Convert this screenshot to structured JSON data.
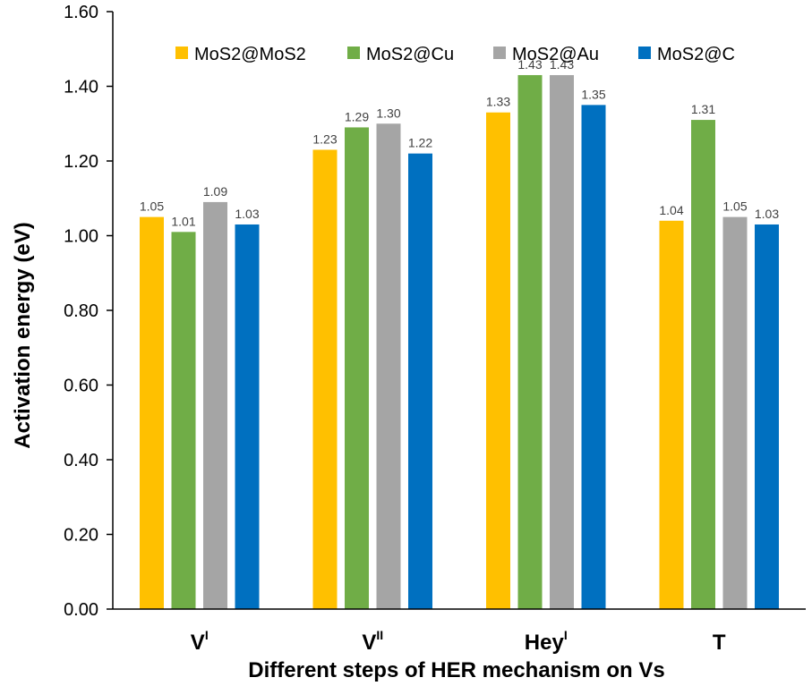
{
  "chart_data": {
    "type": "bar",
    "categories": [
      {
        "main": "V",
        "sup": "I"
      },
      {
        "main": "V",
        "sup": "II"
      },
      {
        "main": "Hey",
        "sup": "I"
      },
      {
        "main": "T",
        "sup": ""
      }
    ],
    "series": [
      {
        "name": "MoS2@MoS2",
        "color": "#FFC000",
        "values": [
          1.05,
          1.23,
          1.33,
          1.04
        ]
      },
      {
        "name": "MoS2@Cu",
        "color": "#70AD47",
        "values": [
          1.01,
          1.29,
          1.43,
          1.31
        ]
      },
      {
        "name": "MoS2@Au",
        "color": "#A5A5A5",
        "values": [
          1.09,
          1.3,
          1.43,
          1.05
        ]
      },
      {
        "name": "MoS2@C",
        "color": "#0070C0",
        "values": [
          1.03,
          1.22,
          1.35,
          1.03
        ]
      }
    ],
    "value_labels": [
      [
        "1.05",
        "1.23",
        "1.33",
        "1.04"
      ],
      [
        "1.01",
        "1.29",
        "1.43",
        "1.31"
      ],
      [
        "1.09",
        "1.30",
        "1.43",
        "1.05"
      ],
      [
        "1.03",
        "1.22",
        "1.35",
        "1.03"
      ]
    ],
    "xlabel": "Different steps of HER mechanism on Vs",
    "ylabel": "Activation energy (eV)",
    "ylim": [
      0,
      1.6
    ],
    "yticks": [
      "0.00",
      "0.20",
      "0.40",
      "0.60",
      "0.80",
      "1.00",
      "1.20",
      "1.40",
      "1.60"
    ],
    "grid": false,
    "legend_position": "top"
  }
}
